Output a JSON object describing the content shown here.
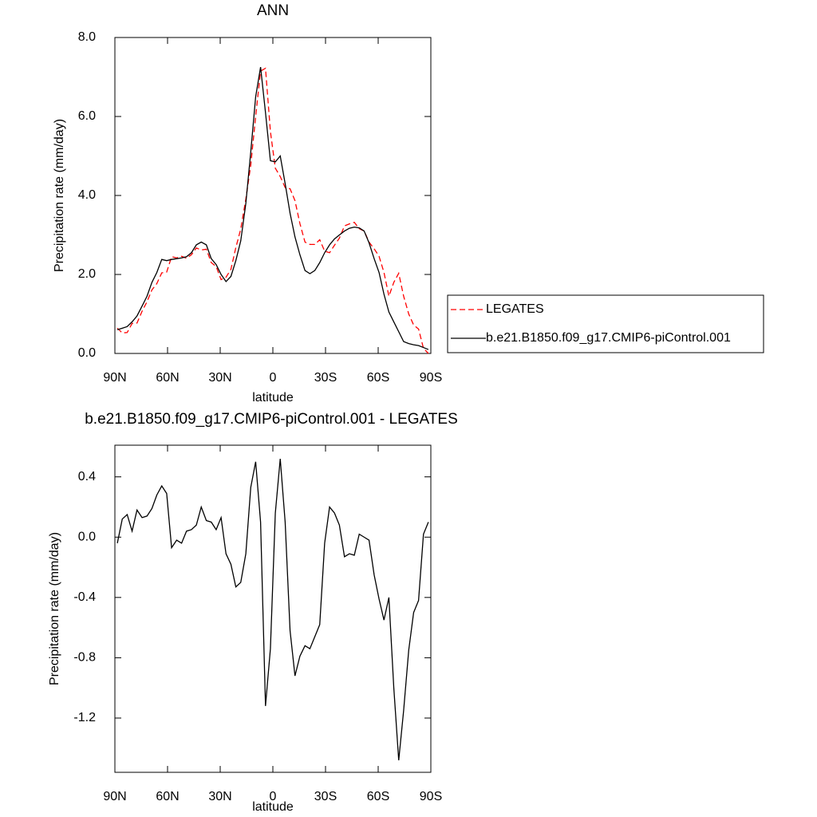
{
  "chart_data": [
    {
      "type": "line",
      "title": "ANN",
      "xlabel": "latitude",
      "ylabel": "Precipitation rate (mm/day)",
      "x": [
        88.6,
        85.8,
        83.0,
        80.2,
        77.4,
        74.5,
        71.7,
        68.9,
        66.1,
        63.3,
        60.5,
        57.7,
        54.8,
        52.0,
        49.2,
        46.4,
        43.6,
        40.8,
        37.9,
        35.1,
        32.3,
        29.5,
        26.7,
        23.9,
        21.1,
        18.3,
        15.4,
        12.6,
        9.8,
        7.0,
        4.2,
        1.4,
        -1.4,
        -4.2,
        -7.0,
        -9.8,
        -12.6,
        -15.4,
        -18.3,
        -21.1,
        -23.9,
        -26.7,
        -29.5,
        -32.3,
        -35.1,
        -37.9,
        -40.8,
        -43.6,
        -46.4,
        -49.2,
        -52.0,
        -54.8,
        -57.7,
        -60.5,
        -63.3,
        -66.1,
        -68.9,
        -71.7,
        -74.5,
        -77.4,
        -80.2,
        -83.0,
        -85.8,
        -88.6
      ],
      "series": [
        {
          "name": "LEGATES",
          "color": "#ff0000",
          "dashed": true,
          "values": [
            0.64,
            0.52,
            0.53,
            0.76,
            0.77,
            1.07,
            1.31,
            1.61,
            1.77,
            2.04,
            2.06,
            2.45,
            2.42,
            2.46,
            2.41,
            2.5,
            2.67,
            2.62,
            2.64,
            2.3,
            2.2,
            1.87,
            1.93,
            2.13,
            2.68,
            3.15,
            3.91,
            4.77,
            6.0,
            7.15,
            7.22,
            5.62,
            4.69,
            4.48,
            4.2,
            4.17,
            3.87,
            3.29,
            2.82,
            2.76,
            2.76,
            2.88,
            2.59,
            2.55,
            2.74,
            2.92,
            3.23,
            3.28,
            3.32,
            3.16,
            3.1,
            2.82,
            2.65,
            2.46,
            2.05,
            1.45,
            1.8,
            2.03,
            1.45,
            1.0,
            0.72,
            0.62,
            0.13,
            0.0
          ]
        },
        {
          "name": "b.e21.B1850.f09_g17.CMIP6-piControl.001",
          "color": "#000000",
          "dashed": false,
          "values": [
            0.6,
            0.64,
            0.68,
            0.8,
            0.95,
            1.2,
            1.45,
            1.8,
            2.05,
            2.38,
            2.35,
            2.38,
            2.4,
            2.42,
            2.45,
            2.55,
            2.75,
            2.82,
            2.75,
            2.4,
            2.25,
            2.0,
            1.82,
            1.95,
            2.35,
            2.85,
            3.8,
            5.1,
            6.5,
            7.25,
            6.1,
            4.88,
            4.85,
            5.0,
            4.3,
            3.55,
            2.95,
            2.5,
            2.1,
            2.02,
            2.1,
            2.3,
            2.55,
            2.75,
            2.9,
            3.0,
            3.1,
            3.17,
            3.2,
            3.18,
            3.1,
            2.8,
            2.4,
            2.05,
            1.5,
            1.05,
            0.8,
            0.55,
            0.3,
            0.25,
            0.22,
            0.2,
            0.15,
            0.1
          ]
        }
      ],
      "xlim": [
        90,
        -90
      ],
      "xticks": [
        {
          "value": 90,
          "label": "90N"
        },
        {
          "value": 60,
          "label": "60N"
        },
        {
          "value": 30,
          "label": "30N"
        },
        0,
        {
          "value": -30,
          "label": "30S"
        },
        {
          "value": -60,
          "label": "60S"
        },
        {
          "value": -90,
          "label": "90S"
        }
      ],
      "ylim": [
        0,
        8
      ],
      "yticks": [
        {
          "value": 0,
          "label": "0.0"
        },
        {
          "value": 2,
          "label": "2.0"
        },
        {
          "value": 4,
          "label": "4.0"
        },
        {
          "value": 6,
          "label": "6.0"
        },
        {
          "value": 8,
          "label": "8.0"
        }
      ],
      "legend": "outside right"
    },
    {
      "type": "line",
      "title": "b.e21.B1850.f09_g17.CMIP6-piControl.001 - LEGATES",
      "xlabel": "latitude",
      "ylabel": "Precipitation rate (mm/day)",
      "x": [
        88.6,
        85.8,
        83.0,
        80.2,
        77.4,
        74.5,
        71.7,
        68.9,
        66.1,
        63.3,
        60.5,
        57.7,
        54.8,
        52.0,
        49.2,
        46.4,
        43.6,
        40.8,
        37.9,
        35.1,
        32.3,
        29.5,
        26.7,
        23.9,
        21.1,
        18.3,
        15.4,
        12.6,
        9.8,
        7.0,
        4.2,
        1.4,
        -1.4,
        -4.2,
        -7.0,
        -9.8,
        -12.6,
        -15.4,
        -18.3,
        -21.1,
        -23.9,
        -26.7,
        -29.5,
        -32.3,
        -35.1,
        -37.9,
        -40.8,
        -43.6,
        -46.4,
        -49.2,
        -52.0,
        -54.8,
        -57.7,
        -60.5,
        -63.3,
        -66.1,
        -68.9,
        -71.7,
        -74.5,
        -77.4,
        -80.2,
        -83.0,
        -85.8,
        -88.6
      ],
      "values": [
        -0.04,
        0.12,
        0.15,
        0.04,
        0.18,
        0.13,
        0.14,
        0.19,
        0.28,
        0.34,
        0.29,
        -0.07,
        -0.02,
        -0.04,
        0.04,
        0.05,
        0.08,
        0.2,
        0.11,
        0.1,
        0.05,
        0.13,
        -0.11,
        -0.18,
        -0.33,
        -0.3,
        -0.11,
        0.33,
        0.5,
        0.1,
        -1.12,
        -0.74,
        0.16,
        0.52,
        0.1,
        -0.62,
        -0.92,
        -0.79,
        -0.72,
        -0.74,
        -0.66,
        -0.58,
        -0.04,
        0.2,
        0.16,
        0.08,
        -0.13,
        -0.11,
        -0.12,
        0.02,
        0.0,
        -0.02,
        -0.25,
        -0.41,
        -0.55,
        -0.4,
        -1.0,
        -1.48,
        -1.15,
        -0.75,
        -0.5,
        -0.42,
        0.02,
        0.1
      ],
      "color": "#000000",
      "xlim": [
        90,
        -90
      ],
      "xticks": [
        {
          "value": 90,
          "label": "90N"
        },
        {
          "value": 60,
          "label": "60N"
        },
        {
          "value": 30,
          "label": "30N"
        },
        0,
        {
          "value": -30,
          "label": "30S"
        },
        {
          "value": -60,
          "label": "60S"
        },
        {
          "value": -90,
          "label": "90S"
        }
      ],
      "ylim": [
        -1.56,
        0.61
      ],
      "yticks": [
        0.4,
        {
          "value": 0,
          "label": "0.0"
        },
        -0.4,
        -0.8,
        -1.2
      ]
    }
  ]
}
